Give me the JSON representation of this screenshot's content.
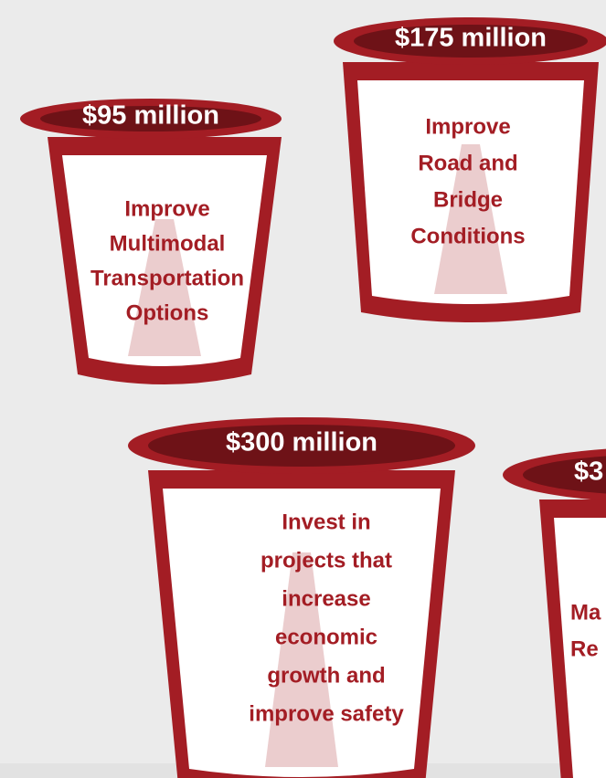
{
  "buckets": [
    {
      "amount": "$95 million",
      "lines": [
        "Improve",
        "Multimodal",
        "Transportation",
        "Options"
      ]
    },
    {
      "amount": "$175 million",
      "lines": [
        "Improve",
        "Road and",
        "Bridge",
        "Conditions"
      ]
    },
    {
      "amount": "$300 million",
      "lines": [
        "Invest in",
        "projects that",
        "increase",
        "economic",
        "growth and",
        "improve safety"
      ]
    },
    {
      "amount": "$3",
      "lines": [
        "Ma",
        "Re"
      ]
    }
  ]
}
